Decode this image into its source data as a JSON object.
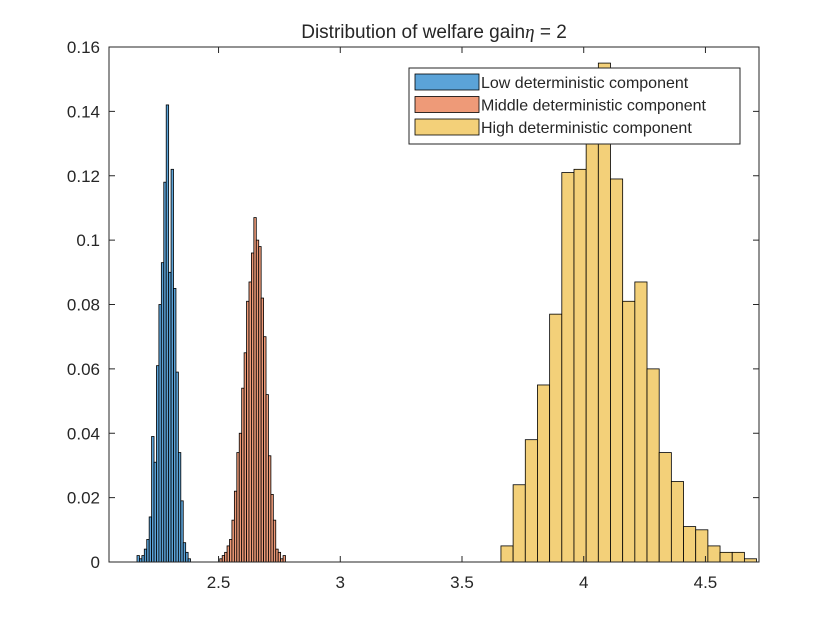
{
  "chart_data": {
    "type": "bar",
    "title": "Distribution of welfare gain",
    "title_symbol": "η",
    "title_suffix": " = 2",
    "xlabel": "",
    "ylabel": "",
    "xlim": [
      2.05,
      4.72
    ],
    "ylim": [
      0,
      0.16
    ],
    "xticks": [
      2.5,
      3,
      3.5,
      4,
      4.5
    ],
    "xtick_labels": [
      "2.5",
      "3",
      "3.5",
      "4",
      "4.5"
    ],
    "yticks": [
      0,
      0.02,
      0.04,
      0.06,
      0.08,
      0.1,
      0.12,
      0.14,
      0.16
    ],
    "ytick_labels": [
      "0",
      "0.02",
      "0.04",
      "0.06",
      "0.08",
      "0.1",
      "0.12",
      "0.14",
      "0.16"
    ],
    "grid": false,
    "legend_position": "top-right",
    "series": [
      {
        "name": "Low deterministic component",
        "color": "#5ba3d8",
        "bin_start": 2.165,
        "bin_width": 0.01,
        "values": [
          0.002,
          0.001,
          0.002,
          0.004,
          0.007,
          0.014,
          0.039,
          0.031,
          0.061,
          0.08,
          0.093,
          0.118,
          0.142,
          0.09,
          0.122,
          0.085,
          0.059,
          0.034,
          0.019,
          0.006,
          0.003,
          0.001
        ]
      },
      {
        "name": "Middle deterministic component",
        "color": "#ee9a78",
        "bin_start": 2.505,
        "bin_width": 0.01,
        "values": [
          0.001,
          0.002,
          0.003,
          0.005,
          0.007,
          0.013,
          0.022,
          0.034,
          0.04,
          0.054,
          0.065,
          0.081,
          0.087,
          0.096,
          0.107,
          0.1,
          0.098,
          0.082,
          0.07,
          0.052,
          0.033,
          0.021,
          0.013,
          0.004,
          0.003,
          0.001,
          0.002
        ]
      },
      {
        "name": "High deterministic component",
        "color": "#f3d079",
        "bin_start": 3.66,
        "bin_width": 0.05,
        "values": [
          0.005,
          0.024,
          0.038,
          0.055,
          0.077,
          0.121,
          0.122,
          0.15,
          0.155,
          0.119,
          0.081,
          0.087,
          0.06,
          0.034,
          0.025,
          0.011,
          0.01,
          0.005,
          0.003,
          0.003,
          0.001
        ]
      }
    ]
  }
}
